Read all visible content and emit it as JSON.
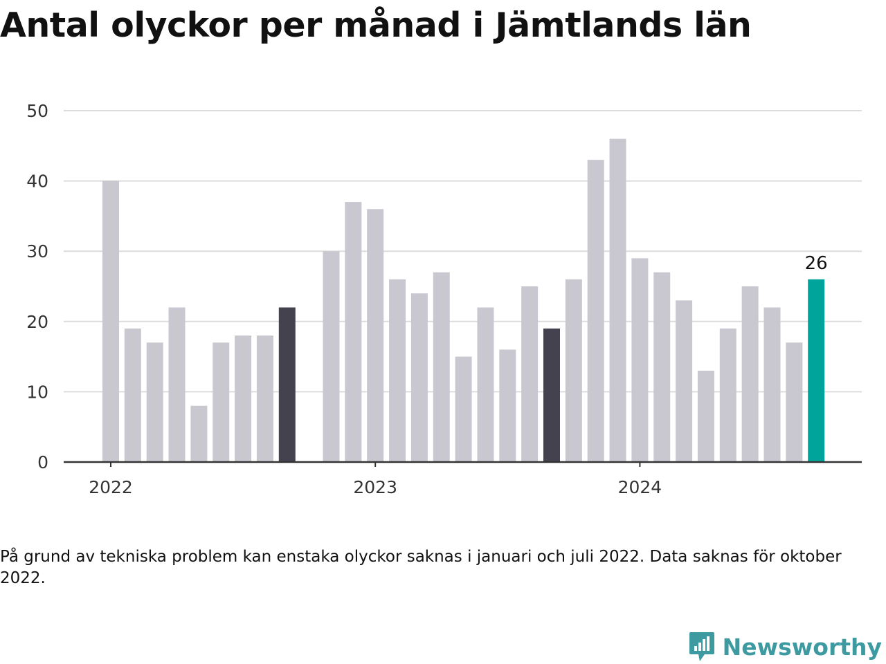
{
  "title": "Antal olyckor per månad i Jämtlands län",
  "note": "På grund av tekniska problem kan enstaka olyckor saknas i januari och juli 2022. Data saknas för oktober 2022.",
  "brand": {
    "name": "Newsworthy",
    "icon": "newsworthy-logo-icon",
    "color": "#3d9aa0"
  },
  "colors": {
    "default_bar": "#c9c8d0",
    "highlight_bar": "#44424f",
    "latest_bar": "#00a49a",
    "grid": "#dcdcdc",
    "axis": "#333333"
  },
  "chart_data": {
    "type": "bar",
    "title": "Antal olyckor per månad i Jämtlands län",
    "xlabel": "",
    "ylabel": "",
    "ylim": [
      0,
      50
    ],
    "yticks": [
      0,
      10,
      20,
      30,
      40,
      50
    ],
    "xticks": [
      "2022",
      "2023",
      "2024"
    ],
    "grid": true,
    "categories": [
      "2022-01",
      "2022-02",
      "2022-03",
      "2022-04",
      "2022-05",
      "2022-06",
      "2022-07",
      "2022-08",
      "2022-09",
      "2022-10",
      "2022-11",
      "2022-12",
      "2023-01",
      "2023-02",
      "2023-03",
      "2023-04",
      "2023-05",
      "2023-06",
      "2023-07",
      "2023-08",
      "2023-09",
      "2023-10",
      "2023-11",
      "2023-12",
      "2024-01",
      "2024-02",
      "2024-03",
      "2024-04",
      "2024-05",
      "2024-06",
      "2024-07",
      "2024-08",
      "2024-09"
    ],
    "values": [
      40,
      19,
      17,
      22,
      8,
      17,
      18,
      18,
      22,
      null,
      30,
      37,
      36,
      26,
      24,
      27,
      15,
      22,
      16,
      25,
      19,
      26,
      43,
      46,
      29,
      27,
      23,
      13,
      19,
      25,
      22,
      17,
      26
    ],
    "highlighted": [
      "2022-09",
      "2023-09"
    ],
    "latest": "2024-09",
    "data_labels": [
      {
        "category": "2024-09",
        "text": "26"
      }
    ]
  }
}
